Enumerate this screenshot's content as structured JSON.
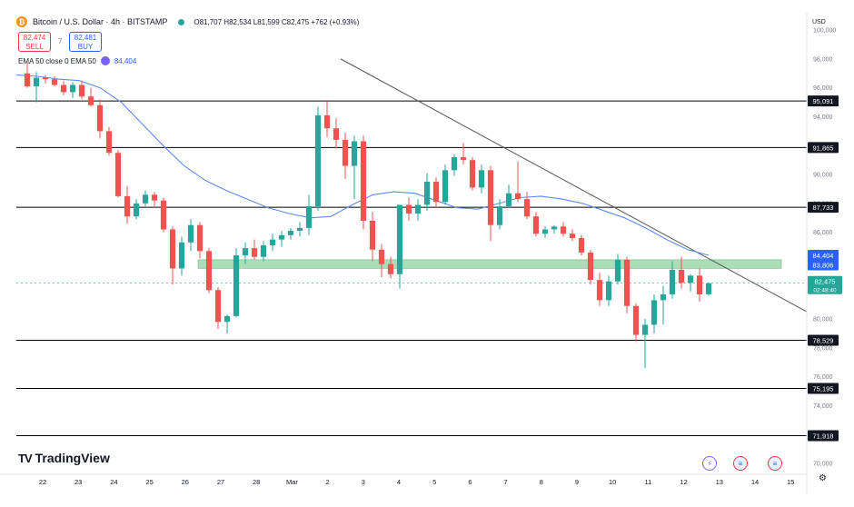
{
  "header": {
    "symbol_icon": "bitcoin-icon",
    "title": "Bitcoin / U.S. Dollar · 4h · BITSTAMP",
    "ohlc": "O81,707 H82,534 L81,599 C82,475 +762 (+0.93%)"
  },
  "trade": {
    "sell_price": "82,474",
    "sell_label": "SELL",
    "spread": "7",
    "buy_price": "82,481",
    "buy_label": "BUY"
  },
  "indicator": {
    "label": "EMA 50 close 0 EMA 50",
    "value": "84,404"
  },
  "brand": {
    "name": "TradingView"
  },
  "colors": {
    "up": "#26a69a",
    "down": "#ef5350",
    "ema": "#5b8def",
    "zone": "#8fd19e",
    "trendline": "#555555"
  },
  "chart_data": {
    "type": "candlestick",
    "currency": "USD",
    "timeframe": "4h",
    "ylim": [
      69500,
      101200
    ],
    "y_ticks": [
      "70,000",
      "72,000",
      "74,000",
      "76,000",
      "78,000",
      "80,000",
      "82,000",
      "84,000",
      "86,000",
      "88,000",
      "90,000",
      "92,000",
      "94,000",
      "96,000",
      "98,000",
      "100,000"
    ],
    "x_ticks": [
      "22",
      "23",
      "24",
      "25",
      "26",
      "27",
      "28",
      "Mar",
      "2",
      "3",
      "4",
      "5",
      "6",
      "7",
      "8",
      "9",
      "10",
      "11",
      "12",
      "13",
      "14",
      "15"
    ],
    "horizontal_levels": [
      "95,091",
      "91,865",
      "87,733",
      "78,529",
      "75,195",
      "71,918"
    ],
    "support_zone": {
      "label": "83,806",
      "low": 83500,
      "high": 84100
    },
    "ema_label": "84,404",
    "current_price": {
      "price": "82,475",
      "countdown": "02:48:40"
    },
    "trendline": {
      "start": {
        "date": "Mar 2",
        "price": 98000
      },
      "end": {
        "date": "Mar 15",
        "price": 80500
      }
    },
    "ema": [
      96900,
      96800,
      96600,
      96500,
      96000,
      95000,
      93500,
      92000,
      90600,
      89600,
      88900,
      88300,
      87700,
      87300,
      87000,
      87100,
      87900,
      88600,
      88800,
      88700,
      88200,
      87700,
      87600,
      88000,
      88400,
      88500,
      88300,
      88000,
      87500,
      87000,
      86300,
      85500,
      84800,
      84404
    ],
    "candles": [
      {
        "o": 97000,
        "h": 97700,
        "l": 96000,
        "c": 96100
      },
      {
        "o": 96100,
        "h": 97100,
        "l": 95000,
        "c": 96700
      },
      {
        "o": 96700,
        "h": 96900,
        "l": 96300,
        "c": 96600
      },
      {
        "o": 96600,
        "h": 96800,
        "l": 96100,
        "c": 96200
      },
      {
        "o": 96200,
        "h": 96500,
        "l": 95500,
        "c": 95700
      },
      {
        "o": 95700,
        "h": 96400,
        "l": 95300,
        "c": 96200
      },
      {
        "o": 96200,
        "h": 96500,
        "l": 95200,
        "c": 95400
      },
      {
        "o": 95400,
        "h": 96000,
        "l": 94700,
        "c": 94800
      },
      {
        "o": 94800,
        "h": 95200,
        "l": 92500,
        "c": 93000
      },
      {
        "o": 93000,
        "h": 93300,
        "l": 91300,
        "c": 91500
      },
      {
        "o": 91500,
        "h": 91700,
        "l": 88400,
        "c": 88500
      },
      {
        "o": 88500,
        "h": 89200,
        "l": 86600,
        "c": 87100
      },
      {
        "o": 87100,
        "h": 88300,
        "l": 86900,
        "c": 88000
      },
      {
        "o": 88000,
        "h": 88900,
        "l": 87800,
        "c": 88600
      },
      {
        "o": 88600,
        "h": 88800,
        "l": 87700,
        "c": 88200
      },
      {
        "o": 88200,
        "h": 88400,
        "l": 86000,
        "c": 86200
      },
      {
        "o": 86200,
        "h": 86400,
        "l": 82400,
        "c": 83500
      },
      {
        "o": 83500,
        "h": 85700,
        "l": 83000,
        "c": 85300
      },
      {
        "o": 85300,
        "h": 86900,
        "l": 84700,
        "c": 86500
      },
      {
        "o": 86500,
        "h": 86700,
        "l": 84200,
        "c": 84700
      },
      {
        "o": 84700,
        "h": 84900,
        "l": 81800,
        "c": 82000
      },
      {
        "o": 82000,
        "h": 82200,
        "l": 79300,
        "c": 79800
      },
      {
        "o": 79800,
        "h": 80300,
        "l": 79000,
        "c": 80200
      },
      {
        "o": 80200,
        "h": 84900,
        "l": 80100,
        "c": 84400
      },
      {
        "o": 84400,
        "h": 85300,
        "l": 83800,
        "c": 84900
      },
      {
        "o": 84900,
        "h": 85500,
        "l": 84100,
        "c": 84300
      },
      {
        "o": 84300,
        "h": 85400,
        "l": 84000,
        "c": 85100
      },
      {
        "o": 85100,
        "h": 85900,
        "l": 84700,
        "c": 85500
      },
      {
        "o": 85500,
        "h": 86100,
        "l": 85000,
        "c": 85800
      },
      {
        "o": 85800,
        "h": 86300,
        "l": 85500,
        "c": 86100
      },
      {
        "o": 86100,
        "h": 86700,
        "l": 85700,
        "c": 86300
      },
      {
        "o": 86300,
        "h": 88600,
        "l": 85800,
        "c": 87800
      },
      {
        "o": 87800,
        "h": 94700,
        "l": 87500,
        "c": 94100
      },
      {
        "o": 94100,
        "h": 95100,
        "l": 92600,
        "c": 93200
      },
      {
        "o": 93200,
        "h": 93900,
        "l": 91800,
        "c": 92400
      },
      {
        "o": 92400,
        "h": 92900,
        "l": 89700,
        "c": 90600
      },
      {
        "o": 90600,
        "h": 92700,
        "l": 88300,
        "c": 92300
      },
      {
        "o": 92300,
        "h": 92700,
        "l": 86200,
        "c": 86800
      },
      {
        "o": 86800,
        "h": 87400,
        "l": 84000,
        "c": 84800
      },
      {
        "o": 84800,
        "h": 85200,
        "l": 82900,
        "c": 83800
      },
      {
        "o": 83800,
        "h": 84300,
        "l": 82800,
        "c": 83100
      },
      {
        "o": 83100,
        "h": 87900,
        "l": 82100,
        "c": 87900
      },
      {
        "o": 87900,
        "h": 88400,
        "l": 86800,
        "c": 87300
      },
      {
        "o": 87300,
        "h": 88300,
        "l": 86800,
        "c": 87900
      },
      {
        "o": 87900,
        "h": 90100,
        "l": 87500,
        "c": 89500
      },
      {
        "o": 89500,
        "h": 89800,
        "l": 87700,
        "c": 88100
      },
      {
        "o": 88100,
        "h": 90700,
        "l": 87900,
        "c": 90300
      },
      {
        "o": 90300,
        "h": 91400,
        "l": 89900,
        "c": 91200
      },
      {
        "o": 91200,
        "h": 92200,
        "l": 90700,
        "c": 91000
      },
      {
        "o": 91000,
        "h": 91200,
        "l": 88900,
        "c": 89100
      },
      {
        "o": 89100,
        "h": 90700,
        "l": 88700,
        "c": 90300
      },
      {
        "o": 90300,
        "h": 90600,
        "l": 85400,
        "c": 86500
      },
      {
        "o": 86500,
        "h": 88300,
        "l": 86200,
        "c": 87800
      },
      {
        "o": 87800,
        "h": 89300,
        "l": 87700,
        "c": 88700
      },
      {
        "o": 88700,
        "h": 90900,
        "l": 88100,
        "c": 88300
      },
      {
        "o": 88300,
        "h": 88800,
        "l": 86900,
        "c": 87100
      },
      {
        "o": 87100,
        "h": 87400,
        "l": 85700,
        "c": 85900
      },
      {
        "o": 85900,
        "h": 86400,
        "l": 85600,
        "c": 86200
      },
      {
        "o": 86200,
        "h": 86500,
        "l": 85900,
        "c": 86400
      },
      {
        "o": 86400,
        "h": 86700,
        "l": 85700,
        "c": 85900
      },
      {
        "o": 85900,
        "h": 86200,
        "l": 85400,
        "c": 85600
      },
      {
        "o": 85600,
        "h": 85800,
        "l": 84400,
        "c": 84600
      },
      {
        "o": 84600,
        "h": 84800,
        "l": 82400,
        "c": 82700
      },
      {
        "o": 82700,
        "h": 83200,
        "l": 80900,
        "c": 81300
      },
      {
        "o": 81300,
        "h": 83000,
        "l": 80900,
        "c": 82600
      },
      {
        "o": 82600,
        "h": 84500,
        "l": 82400,
        "c": 84100
      },
      {
        "o": 84100,
        "h": 84300,
        "l": 80400,
        "c": 80900
      },
      {
        "o": 80900,
        "h": 81100,
        "l": 78400,
        "c": 78900
      },
      {
        "o": 78900,
        "h": 80000,
        "l": 76600,
        "c": 79600
      },
      {
        "o": 79600,
        "h": 81700,
        "l": 79000,
        "c": 81300
      },
      {
        "o": 81300,
        "h": 82300,
        "l": 79600,
        "c": 81700
      },
      {
        "o": 81700,
        "h": 84000,
        "l": 81400,
        "c": 83400
      },
      {
        "o": 83400,
        "h": 84300,
        "l": 82100,
        "c": 82500
      },
      {
        "o": 82500,
        "h": 83100,
        "l": 81900,
        "c": 83000
      },
      {
        "o": 83000,
        "h": 83500,
        "l": 81200,
        "c": 81700
      },
      {
        "o": 81707,
        "h": 82534,
        "l": 81599,
        "c": 82475
      }
    ]
  }
}
